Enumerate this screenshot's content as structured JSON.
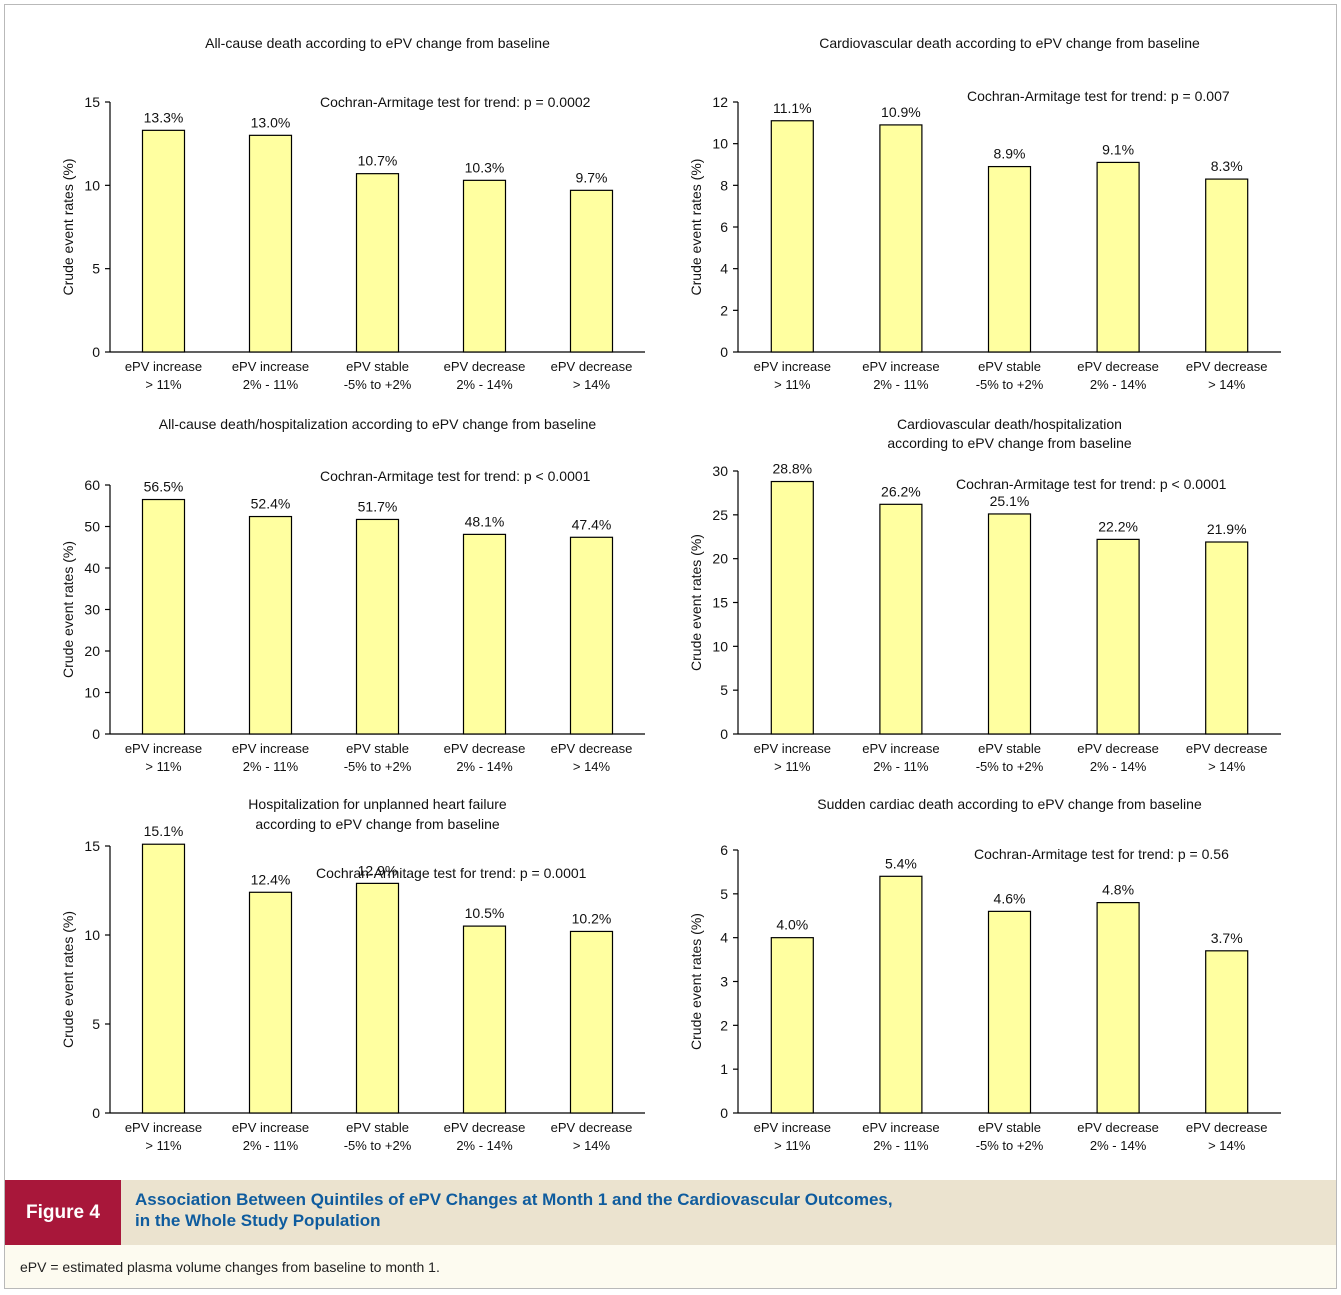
{
  "figure": {
    "label": "Figure 4",
    "title_line1": "Association Between Quintiles of ePV Changes at Month 1 and the Cardiovascular Outcomes,",
    "title_line2": "in the Whole Study Population",
    "footnote": "ePV = estimated plasma volume changes from baseline to month 1."
  },
  "colors": {
    "bar_fill": "#ffffa0",
    "bar_stroke": "#000000",
    "label_bg": "#a8173a",
    "title_color": "#0f5c9e",
    "caption_bg": "#ebe3cf",
    "footnote_bg": "#fdfbf0"
  },
  "chart_data": [
    {
      "type": "bar",
      "title": [
        "All-cause death according to ePV change from baseline"
      ],
      "annotation": "Cochran-Armitage test for trend: p = 0.0002",
      "categories": [
        [
          "ePV increase",
          "> 11%"
        ],
        [
          "ePV increase",
          "2% - 11%"
        ],
        [
          "ePV stable",
          "-5% to +2%"
        ],
        [
          "ePV decrease",
          "2% - 14%"
        ],
        [
          "ePV decrease",
          "> 14%"
        ]
      ],
      "values": [
        13.3,
        13.0,
        10.7,
        10.3,
        9.7
      ],
      "value_labels": [
        "13.3%",
        "13.0%",
        "10.7%",
        "10.3%",
        "9.7%"
      ],
      "ylabel": "Crude event rates (%)",
      "ylim": [
        0,
        15
      ],
      "yticks": [
        0,
        5,
        10,
        15
      ],
      "grid": false
    },
    {
      "type": "bar",
      "title": [
        "Cardiovascular death according to ePV change from baseline"
      ],
      "annotation": "Cochran-Armitage test for trend: p = 0.007",
      "categories": [
        [
          "ePV increase",
          "> 11%"
        ],
        [
          "ePV increase",
          "2% - 11%"
        ],
        [
          "ePV stable",
          "-5% to +2%"
        ],
        [
          "ePV decrease",
          "2% - 14%"
        ],
        [
          "ePV decrease",
          "> 14%"
        ]
      ],
      "values": [
        11.1,
        10.9,
        8.9,
        9.1,
        8.3
      ],
      "value_labels": [
        "11.1%",
        "10.9%",
        "8.9%",
        "9.1%",
        "8.3%"
      ],
      "ylabel": "Crude event rates (%)",
      "ylim": [
        0,
        12
      ],
      "yticks": [
        0,
        2,
        4,
        6,
        8,
        10,
        12
      ],
      "grid": false
    },
    {
      "type": "bar",
      "title": [
        "All-cause death/hospitalization according to ePV change from baseline"
      ],
      "annotation": "Cochran-Armitage test for trend: p < 0.0001",
      "categories": [
        [
          "ePV increase",
          "> 11%"
        ],
        [
          "ePV increase",
          "2% - 11%"
        ],
        [
          "ePV stable",
          "-5% to +2%"
        ],
        [
          "ePV decrease",
          "2% - 14%"
        ],
        [
          "ePV decrease",
          "> 14%"
        ]
      ],
      "values": [
        56.5,
        52.4,
        51.7,
        48.1,
        47.4
      ],
      "value_labels": [
        "56.5%",
        "52.4%",
        "51.7%",
        "48.1%",
        "47.4%"
      ],
      "ylabel": "Crude event rates (%)",
      "ylim": [
        0,
        60
      ],
      "yticks": [
        0,
        10,
        20,
        30,
        40,
        50,
        60
      ],
      "grid": false
    },
    {
      "type": "bar",
      "title": [
        "Cardiovascular death/hospitalization",
        "according to ePV change from baseline"
      ],
      "annotation": "Cochran-Armitage test for trend: p < 0.0001",
      "categories": [
        [
          "ePV increase",
          "> 11%"
        ],
        [
          "ePV increase",
          "2% - 11%"
        ],
        [
          "ePV stable",
          "-5% to +2%"
        ],
        [
          "ePV decrease",
          "2% - 14%"
        ],
        [
          "ePV decrease",
          "> 14%"
        ]
      ],
      "values": [
        28.8,
        26.2,
        25.1,
        22.2,
        21.9
      ],
      "value_labels": [
        "28.8%",
        "26.2%",
        "25.1%",
        "22.2%",
        "21.9%"
      ],
      "ylabel": "Crude event rates (%)",
      "ylim": [
        0,
        30
      ],
      "yticks": [
        0,
        5,
        10,
        15,
        20,
        25,
        30
      ],
      "grid": false
    },
    {
      "type": "bar",
      "title": [
        "Hospitalization for unplanned heart failure",
        "according to ePV change from baseline"
      ],
      "annotation": "Cochran-Armitage test for trend: p = 0.0001",
      "categories": [
        [
          "ePV increase",
          "> 11%"
        ],
        [
          "ePV increase",
          "2% - 11%"
        ],
        [
          "ePV stable",
          "-5% to +2%"
        ],
        [
          "ePV decrease",
          "2% - 14%"
        ],
        [
          "ePV decrease",
          "> 14%"
        ]
      ],
      "values": [
        15.1,
        12.4,
        12.9,
        10.5,
        10.2
      ],
      "value_labels": [
        "15.1%",
        "12.4%",
        "12.9%",
        "10.5%",
        "10.2%"
      ],
      "ylabel": "Crude event rates (%)",
      "ylim": [
        0,
        15
      ],
      "yticks": [
        0,
        5,
        10,
        15
      ],
      "grid": false
    },
    {
      "type": "bar",
      "title": [
        "Sudden cardiac death according to ePV change from baseline"
      ],
      "annotation": "Cochran-Armitage test for trend: p = 0.56",
      "categories": [
        [
          "ePV increase",
          "> 11%"
        ],
        [
          "ePV increase",
          "2% - 11%"
        ],
        [
          "ePV stable",
          "-5% to +2%"
        ],
        [
          "ePV decrease",
          "2% - 14%"
        ],
        [
          "ePV decrease",
          "> 14%"
        ]
      ],
      "values": [
        4.0,
        5.4,
        4.6,
        4.8,
        3.7
      ],
      "value_labels": [
        "4.0%",
        "5.4%",
        "4.6%",
        "4.8%",
        "3.7%"
      ],
      "ylabel": "Crude event rates (%)",
      "ylim": [
        0,
        6
      ],
      "yticks": [
        0,
        1,
        2,
        3,
        4,
        5,
        6
      ],
      "grid": false
    }
  ]
}
